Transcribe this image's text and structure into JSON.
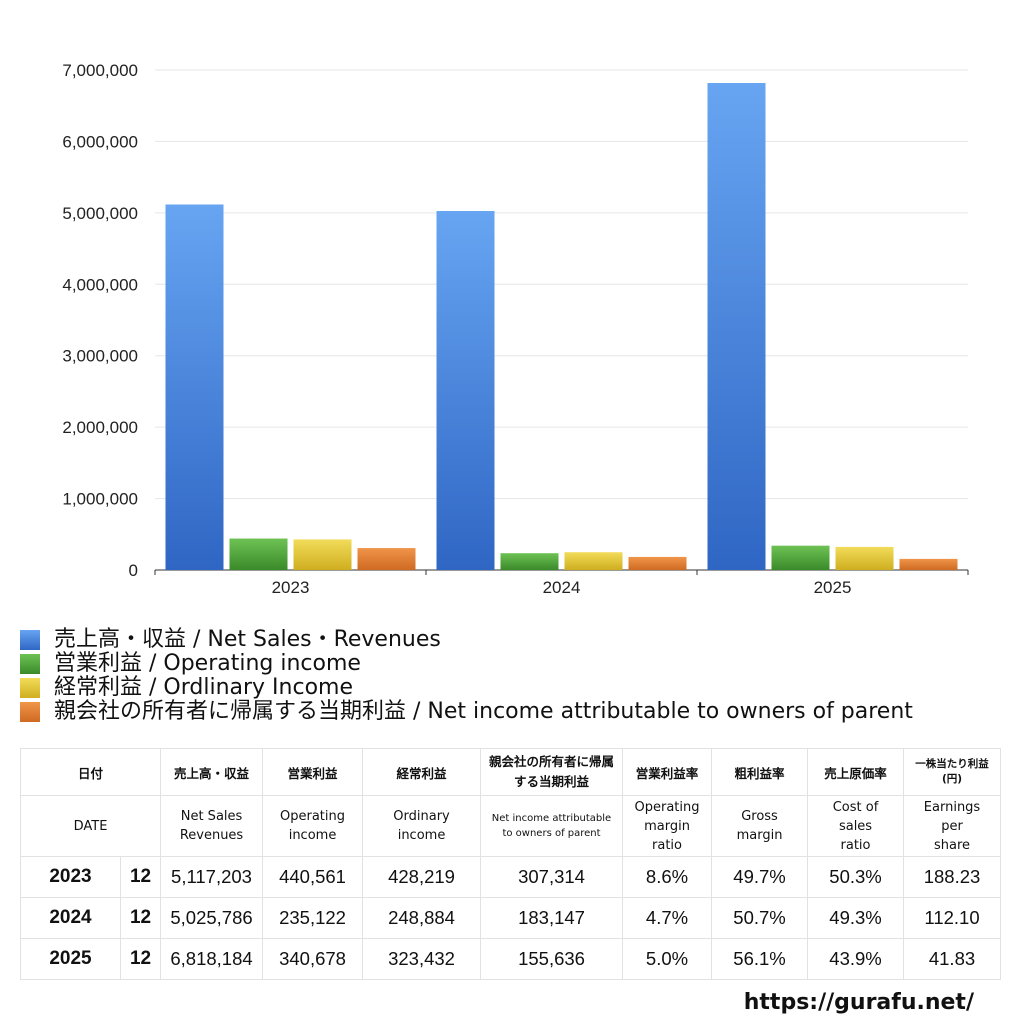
{
  "chart_data": {
    "type": "bar",
    "categories": [
      "2023",
      "2024",
      "2025"
    ],
    "series": [
      {
        "name": "売上高・収益 / Net Sales・Revenues",
        "values": [
          5117203,
          5025786,
          6818184
        ],
        "color": "#3b7de0"
      },
      {
        "name": "営業利益 / Operating income",
        "values": [
          440561,
          235122,
          340678
        ],
        "color": "#4fa23a"
      },
      {
        "name": "経常利益 / Ordlinary Income",
        "values": [
          428219,
          248884,
          323432
        ],
        "color": "#e0c531"
      },
      {
        "name": "親会社の所有者に帰属する当期利益 / Net income attributable to owners of parent",
        "values": [
          307314,
          183147,
          155636
        ],
        "color": "#e07b2e"
      }
    ],
    "ylim": [
      0,
      7000000
    ],
    "yticks": [
      "0",
      "1,000,000",
      "2,000,000",
      "3,000,000",
      "4,000,000",
      "5,000,000",
      "6,000,000",
      "7,000,000"
    ],
    "grid": true,
    "legend_position": "bottom"
  },
  "table": {
    "headers_jp": [
      "日付",
      "売上高・収益",
      "営業利益",
      "経常利益",
      "親会社の所有者に帰属する当期利益",
      "営業利益率",
      "粗利益率",
      "売上原価率",
      "一株当たり利益(円)"
    ],
    "headers_en": [
      "DATE",
      "Net Sales Revenues",
      "Operating income",
      "Ordinary income",
      "Net income attributable to owners of parent",
      "Operating margin ratio",
      "Gross margin",
      "Cost of sales ratio",
      "Earnings per share"
    ],
    "rows": [
      {
        "year": "2023",
        "month": "12",
        "values": [
          "5,117,203",
          "440,561",
          "428,219",
          "307,314",
          "8.6%",
          "49.7%",
          "50.3%",
          "188.23"
        ]
      },
      {
        "year": "2024",
        "month": "12",
        "values": [
          "5,025,786",
          "235,122",
          "248,884",
          "183,147",
          "4.7%",
          "50.7%",
          "49.3%",
          "112.10"
        ]
      },
      {
        "year": "2025",
        "month": "12",
        "values": [
          "6,818,184",
          "340,678",
          "323,432",
          "155,636",
          "5.0%",
          "56.1%",
          "43.9%",
          "41.83"
        ]
      }
    ]
  },
  "footer": {
    "url": "https://gurafu.net/"
  }
}
